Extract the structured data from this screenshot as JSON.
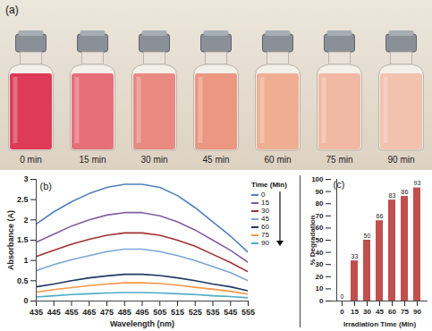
{
  "photo": {
    "title": "(a)",
    "captions": [
      "0 min",
      "15 min",
      "30 min",
      "45 min",
      "60 min",
      "75 min",
      "90 min"
    ],
    "colors": [
      "#dd3b57",
      "#e66f7a",
      "#e98a80",
      "#ec9782",
      "#efae92",
      "#f1b9a3",
      "#f2c2ae"
    ]
  },
  "chart_data": [
    {
      "type": "line",
      "title": "(b)",
      "xlabel": "Wavelength (nm)",
      "ylabel": "Absorbance (A)",
      "x": [
        435,
        445,
        455,
        465,
        475,
        485,
        495,
        505,
        515,
        525,
        535,
        545,
        555
      ],
      "xlim": [
        435,
        555
      ],
      "xticks": [
        435,
        445,
        455,
        465,
        475,
        485,
        495,
        505,
        515,
        525,
        535,
        545,
        555
      ],
      "ylim": [
        0,
        3
      ],
      "yticks": [
        0,
        0.5,
        1,
        1.5,
        2,
        2.5,
        3
      ],
      "legend": "right",
      "legend_title": "Time (Min)",
      "series": [
        {
          "name": "0",
          "color": "#4F81BD",
          "values": [
            1.9,
            2.2,
            2.45,
            2.65,
            2.8,
            2.88,
            2.88,
            2.8,
            2.6,
            2.3,
            1.95,
            1.6,
            1.2
          ]
        },
        {
          "name": "15",
          "color": "#7F5FA5",
          "values": [
            1.45,
            1.65,
            1.85,
            2.0,
            2.12,
            2.18,
            2.18,
            2.1,
            1.95,
            1.75,
            1.5,
            1.25,
            0.95
          ]
        },
        {
          "name": "30",
          "color": "#A0322E",
          "values": [
            1.1,
            1.25,
            1.4,
            1.52,
            1.62,
            1.68,
            1.68,
            1.62,
            1.5,
            1.35,
            1.15,
            0.95,
            0.72
          ]
        },
        {
          "name": "45",
          "color": "#7BA6D8",
          "values": [
            0.75,
            0.9,
            1.02,
            1.12,
            1.22,
            1.28,
            1.28,
            1.22,
            1.12,
            1.0,
            0.85,
            0.7,
            0.5
          ]
        },
        {
          "name": "60",
          "color": "#1F3864",
          "values": [
            0.35,
            0.42,
            0.5,
            0.57,
            0.62,
            0.66,
            0.66,
            0.63,
            0.57,
            0.5,
            0.42,
            0.35,
            0.25
          ]
        },
        {
          "name": "75",
          "color": "#F79646",
          "values": [
            0.22,
            0.28,
            0.33,
            0.38,
            0.42,
            0.45,
            0.45,
            0.43,
            0.39,
            0.34,
            0.29,
            0.24,
            0.17
          ]
        },
        {
          "name": "90",
          "color": "#4BACC6",
          "values": [
            0.1,
            0.13,
            0.16,
            0.18,
            0.2,
            0.21,
            0.21,
            0.2,
            0.18,
            0.16,
            0.13,
            0.11,
            0.08
          ]
        }
      ]
    },
    {
      "type": "bar",
      "title": "(c)",
      "xlabel": "Irradiation Time (Min)",
      "ylabel": "% Degradation",
      "categories": [
        "0",
        "15",
        "30",
        "45",
        "60",
        "75",
        "90"
      ],
      "values": [
        0,
        33,
        50,
        66,
        83,
        86,
        93
      ],
      "color": "#C0504D",
      "data_labels": true,
      "ylim": [
        0,
        100
      ],
      "yticks": [
        0,
        10,
        20,
        30,
        40,
        50,
        60,
        70,
        80,
        90,
        100
      ]
    }
  ]
}
